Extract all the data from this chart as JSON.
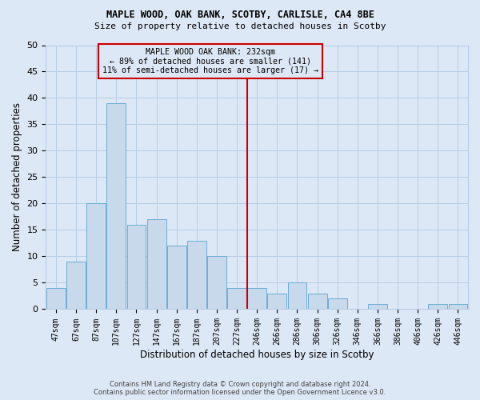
{
  "title": "MAPLE WOOD, OAK BANK, SCOTBY, CARLISLE, CA4 8BE",
  "subtitle": "Size of property relative to detached houses in Scotby",
  "xlabel": "Distribution of detached houses by size in Scotby",
  "ylabel": "Number of detached properties",
  "categories": [
    "47sqm",
    "67sqm",
    "87sqm",
    "107sqm",
    "127sqm",
    "147sqm",
    "167sqm",
    "187sqm",
    "207sqm",
    "227sqm",
    "246sqm",
    "266sqm",
    "286sqm",
    "306sqm",
    "326sqm",
    "346sqm",
    "366sqm",
    "386sqm",
    "406sqm",
    "426sqm",
    "446sqm"
  ],
  "values": [
    4,
    9,
    20,
    39,
    16,
    17,
    12,
    13,
    10,
    4,
    4,
    3,
    5,
    3,
    2,
    0,
    1,
    0,
    0,
    1,
    1
  ],
  "bar_color": "#c8d9eb",
  "bar_edge_color": "#6aaed6",
  "grid_color": "#b8cce4",
  "background_color": "#dce8f5",
  "annotation_text_line1": "MAPLE WOOD OAK BANK: 232sqm",
  "annotation_text_line2": "← 89% of detached houses are smaller (141)",
  "annotation_text_line3": "11% of semi-detached houses are larger (17) →",
  "annotation_box_color": "#cc0000",
  "vline_x": 9.5,
  "ylim": [
    0,
    50
  ],
  "yticks": [
    0,
    5,
    10,
    15,
    20,
    25,
    30,
    35,
    40,
    45,
    50
  ],
  "title_fontsize": 8.5,
  "subtitle_fontsize": 8.0,
  "footer_line1": "Contains HM Land Registry data © Crown copyright and database right 2024.",
  "footer_line2": "Contains public sector information licensed under the Open Government Licence v3.0."
}
